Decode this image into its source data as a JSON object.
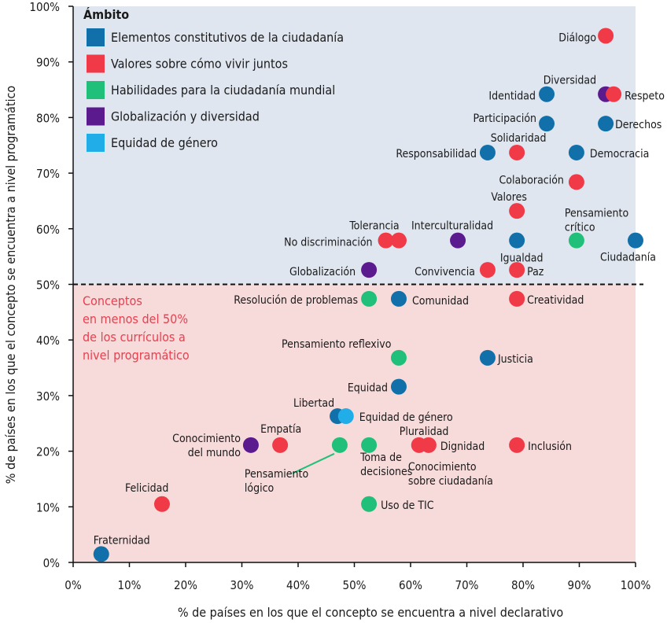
{
  "chart_data": {
    "type": "scatter",
    "xlabel": "% de países en los que el concepto se encuentra a nivel declarativo",
    "ylabel": "% de países en los que el concepto se encuentra a nivel programático",
    "xlim": [
      0,
      100
    ],
    "ylim": [
      0,
      100
    ],
    "x_ticks": [
      "0%",
      "10%",
      "20%",
      "30%",
      "40%",
      "50%",
      "60%",
      "70%",
      "80%",
      "90%",
      "100%"
    ],
    "y_ticks": [
      "0%",
      "10%",
      "20%",
      "30%",
      "40%",
      "50%",
      "60%",
      "70%",
      "80%",
      "90%",
      "100%"
    ],
    "threshold_y": 50,
    "region_colors": {
      "upper": "#dfe6f0",
      "lower": "#f7dada"
    },
    "region_note": "Conceptos\nen menos del 50%\nde los currículos a\nnivel programático",
    "region_note_color": "#e8404f",
    "legend": {
      "title": "Ámbito",
      "placement": "top-left",
      "items": [
        {
          "key": "elementos",
          "label": "Elementos constitutivos de la ciudadanía",
          "color": "#1170aa"
        },
        {
          "key": "valores",
          "label": "Valores sobre cómo vivir juntos",
          "color": "#f03a47"
        },
        {
          "key": "habilidades",
          "label": "Habilidades para la ciudadanía mundial",
          "color": "#21c07a"
        },
        {
          "key": "globalizacion",
          "label": "Globalización y diversidad",
          "color": "#5b1a8e"
        },
        {
          "key": "equidad",
          "label": "Equidad de género",
          "color": "#21aee8"
        }
      ]
    },
    "points": [
      {
        "label": "Diálogo",
        "category": "valores",
        "x": 94.7,
        "y": 94.7
      },
      {
        "label": "Diversidad",
        "category": "globalizacion",
        "x": 94.7,
        "y": 84.2
      },
      {
        "label": "Respeto",
        "category": "valores",
        "x": 96.1,
        "y": 84.2
      },
      {
        "label": "Identidad",
        "category": "elementos",
        "x": 84.2,
        "y": 84.2
      },
      {
        "label": "Participación",
        "category": "elementos",
        "x": 84.2,
        "y": 78.9
      },
      {
        "label": "Derechos",
        "category": "elementos",
        "x": 94.7,
        "y": 78.9
      },
      {
        "label": "Solidaridad",
        "category": "valores",
        "x": 78.9,
        "y": 73.7
      },
      {
        "label": "Responsabilidad",
        "category": "elementos",
        "x": 73.7,
        "y": 73.7
      },
      {
        "label": "Democracia",
        "category": "elementos",
        "x": 89.5,
        "y": 73.7
      },
      {
        "label": "Colaboración",
        "category": "valores",
        "x": 89.5,
        "y": 68.4
      },
      {
        "label": "Valores",
        "category": "valores",
        "x": 78.9,
        "y": 63.2
      },
      {
        "label": "Tolerancia",
        "category": "valores",
        "x": 57.9,
        "y": 57.9
      },
      {
        "label": "No discriminación",
        "category": "valores",
        "x": 55.6,
        "y": 57.9
      },
      {
        "label": "Interculturalidad",
        "category": "globalizacion",
        "x": 68.4,
        "y": 57.9
      },
      {
        "label": "Igualdad",
        "category": "elementos",
        "x": 78.9,
        "y": 57.9
      },
      {
        "label": "Pensamiento crítico",
        "category": "habilidades",
        "x": 89.5,
        "y": 57.9
      },
      {
        "label": "Ciudadanía",
        "category": "elementos",
        "x": 100,
        "y": 57.9
      },
      {
        "label": "Globalización",
        "category": "globalizacion",
        "x": 52.6,
        "y": 52.6
      },
      {
        "label": "Convivencia",
        "category": "valores",
        "x": 73.7,
        "y": 52.6
      },
      {
        "label": "Paz",
        "category": "valores",
        "x": 78.9,
        "y": 52.6
      },
      {
        "label": "Resolución de problemas",
        "category": "habilidades",
        "x": 52.6,
        "y": 47.4
      },
      {
        "label": "Comunidad",
        "category": "elementos",
        "x": 57.9,
        "y": 47.4
      },
      {
        "label": "Creatividad",
        "category": "valores",
        "x": 78.9,
        "y": 47.4
      },
      {
        "label": "Pensamiento reflexivo",
        "category": "habilidades",
        "x": 57.9,
        "y": 36.8
      },
      {
        "label": "Justicia",
        "category": "elementos",
        "x": 73.7,
        "y": 36.8
      },
      {
        "label": "Equidad",
        "category": "elementos",
        "x": 57.9,
        "y": 31.6
      },
      {
        "label": "Libertad",
        "category": "elementos",
        "x": 47.0,
        "y": 26.3
      },
      {
        "label": "Equidad de género",
        "category": "equidad",
        "x": 48.5,
        "y": 26.3
      },
      {
        "label": "Conocimiento del mundo",
        "category": "globalizacion",
        "x": 31.6,
        "y": 21.1
      },
      {
        "label": "Empatía",
        "category": "valores",
        "x": 36.8,
        "y": 21.1
      },
      {
        "label": "Pensamiento lógico",
        "category": "habilidades",
        "x": 47.4,
        "y": 21.1
      },
      {
        "label": "Toma de decisiones",
        "category": "habilidades",
        "x": 52.6,
        "y": 21.1
      },
      {
        "label": "Pluralidad",
        "category": "valores",
        "x": 61.5,
        "y": 21.1
      },
      {
        "label": "Dignidad",
        "category": "valores",
        "x": 63.2,
        "y": 21.1
      },
      {
        "label": "Conocimiento sobre ciudadanía",
        "category": "valores",
        "x": 63.2,
        "y": 21.1
      },
      {
        "label": "Inclusión",
        "category": "valores",
        "x": 78.9,
        "y": 21.1
      },
      {
        "label": "Felicidad",
        "category": "valores",
        "x": 15.8,
        "y": 10.5
      },
      {
        "label": "Uso de TIC",
        "category": "habilidades",
        "x": 52.6,
        "y": 10.5
      },
      {
        "label": "Fraternidad",
        "category": "elementos",
        "x": 5.0,
        "y": 1.5
      }
    ]
  }
}
